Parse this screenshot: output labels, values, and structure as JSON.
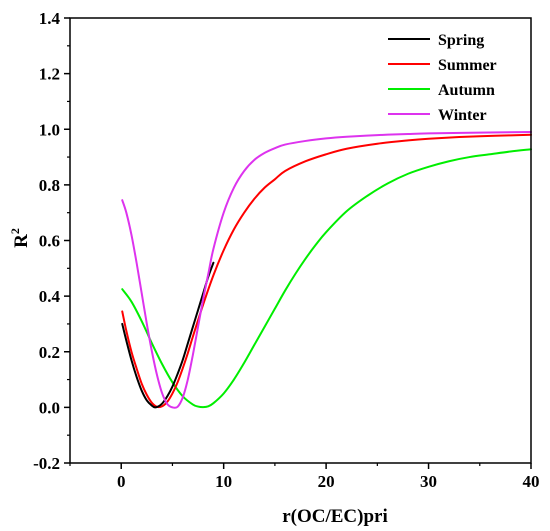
{
  "chart_data": {
    "type": "line",
    "xlabel": "r(OC/EC)pri",
    "ylabel": "R",
    "ylabel_sup": "2",
    "xlim": [
      -5,
      40
    ],
    "ylim": [
      -0.2,
      1.4
    ],
    "xticks": [
      0,
      10,
      20,
      30,
      40
    ],
    "yticks": [
      -0.2,
      0.0,
      0.2,
      0.4,
      0.6,
      0.8,
      1.0,
      1.2,
      1.4
    ],
    "xtick_labels": [
      "0",
      "10",
      "20",
      "30",
      "40"
    ],
    "ytick_labels": [
      "-0.2",
      "0.0",
      "0.2",
      "0.4",
      "0.6",
      "0.8",
      "1.0",
      "1.2",
      "1.4"
    ],
    "legend_position": "top-right",
    "grid": false,
    "series": [
      {
        "name": "Spring",
        "color": "#000000",
        "x": [
          0.1,
          0.5,
          1,
          1.5,
          2,
          2.5,
          3,
          3.3,
          3.6,
          4,
          4.5,
          5,
          5.5,
          6,
          6.5,
          7,
          7.5,
          8,
          8.5,
          9
        ],
        "y": [
          0.3,
          0.24,
          0.17,
          0.11,
          0.06,
          0.025,
          0.006,
          0.0,
          0.003,
          0.014,
          0.04,
          0.075,
          0.12,
          0.17,
          0.23,
          0.29,
          0.35,
          0.41,
          0.47,
          0.52
        ]
      },
      {
        "name": "Summer",
        "color": "#ff0000",
        "x": [
          0.1,
          0.5,
          1,
          1.5,
          2,
          2.5,
          3,
          3.5,
          4,
          4.5,
          5,
          5.5,
          6,
          6.5,
          7,
          8,
          9,
          10,
          11,
          12,
          13,
          14,
          15,
          16,
          18,
          20,
          22,
          25,
          28,
          30,
          33,
          35,
          38,
          40
        ],
        "y": [
          0.345,
          0.275,
          0.2,
          0.14,
          0.085,
          0.045,
          0.016,
          0.002,
          0.004,
          0.02,
          0.05,
          0.09,
          0.14,
          0.195,
          0.255,
          0.37,
          0.475,
          0.565,
          0.64,
          0.7,
          0.75,
          0.79,
          0.82,
          0.85,
          0.885,
          0.91,
          0.93,
          0.948,
          0.96,
          0.966,
          0.972,
          0.975,
          0.978,
          0.98
        ]
      },
      {
        "name": "Autumn",
        "color": "#00ee00",
        "x": [
          0.1,
          1,
          2,
          3,
          4,
          5,
          6,
          7,
          7.5,
          8,
          8.5,
          9,
          10,
          11,
          12,
          13,
          14,
          15,
          16,
          17,
          18,
          19,
          20,
          22,
          24,
          26,
          28,
          30,
          32,
          34,
          36,
          38,
          40
        ],
        "y": [
          0.425,
          0.38,
          0.31,
          0.23,
          0.155,
          0.09,
          0.04,
          0.01,
          0.003,
          0.001,
          0.004,
          0.015,
          0.05,
          0.1,
          0.16,
          0.225,
          0.29,
          0.355,
          0.42,
          0.48,
          0.535,
          0.585,
          0.63,
          0.705,
          0.76,
          0.805,
          0.84,
          0.865,
          0.885,
          0.9,
          0.91,
          0.92,
          0.928
        ]
      },
      {
        "name": "Winter",
        "color": "#dd33ee",
        "x": [
          0.1,
          0.5,
          1,
          1.5,
          2,
          2.5,
          3,
          3.5,
          4,
          4.5,
          5,
          5.5,
          6,
          6.5,
          7,
          7.5,
          8,
          8.5,
          9,
          10,
          11,
          12,
          13,
          14,
          15,
          16,
          18,
          20,
          22,
          25,
          28,
          30,
          35,
          40
        ],
        "y": [
          0.745,
          0.7,
          0.62,
          0.52,
          0.41,
          0.3,
          0.2,
          0.115,
          0.05,
          0.012,
          0.0,
          0.002,
          0.035,
          0.1,
          0.19,
          0.29,
          0.39,
          0.48,
          0.57,
          0.7,
          0.79,
          0.85,
          0.89,
          0.915,
          0.932,
          0.945,
          0.958,
          0.967,
          0.973,
          0.979,
          0.983,
          0.985,
          0.988,
          0.99
        ]
      }
    ]
  }
}
